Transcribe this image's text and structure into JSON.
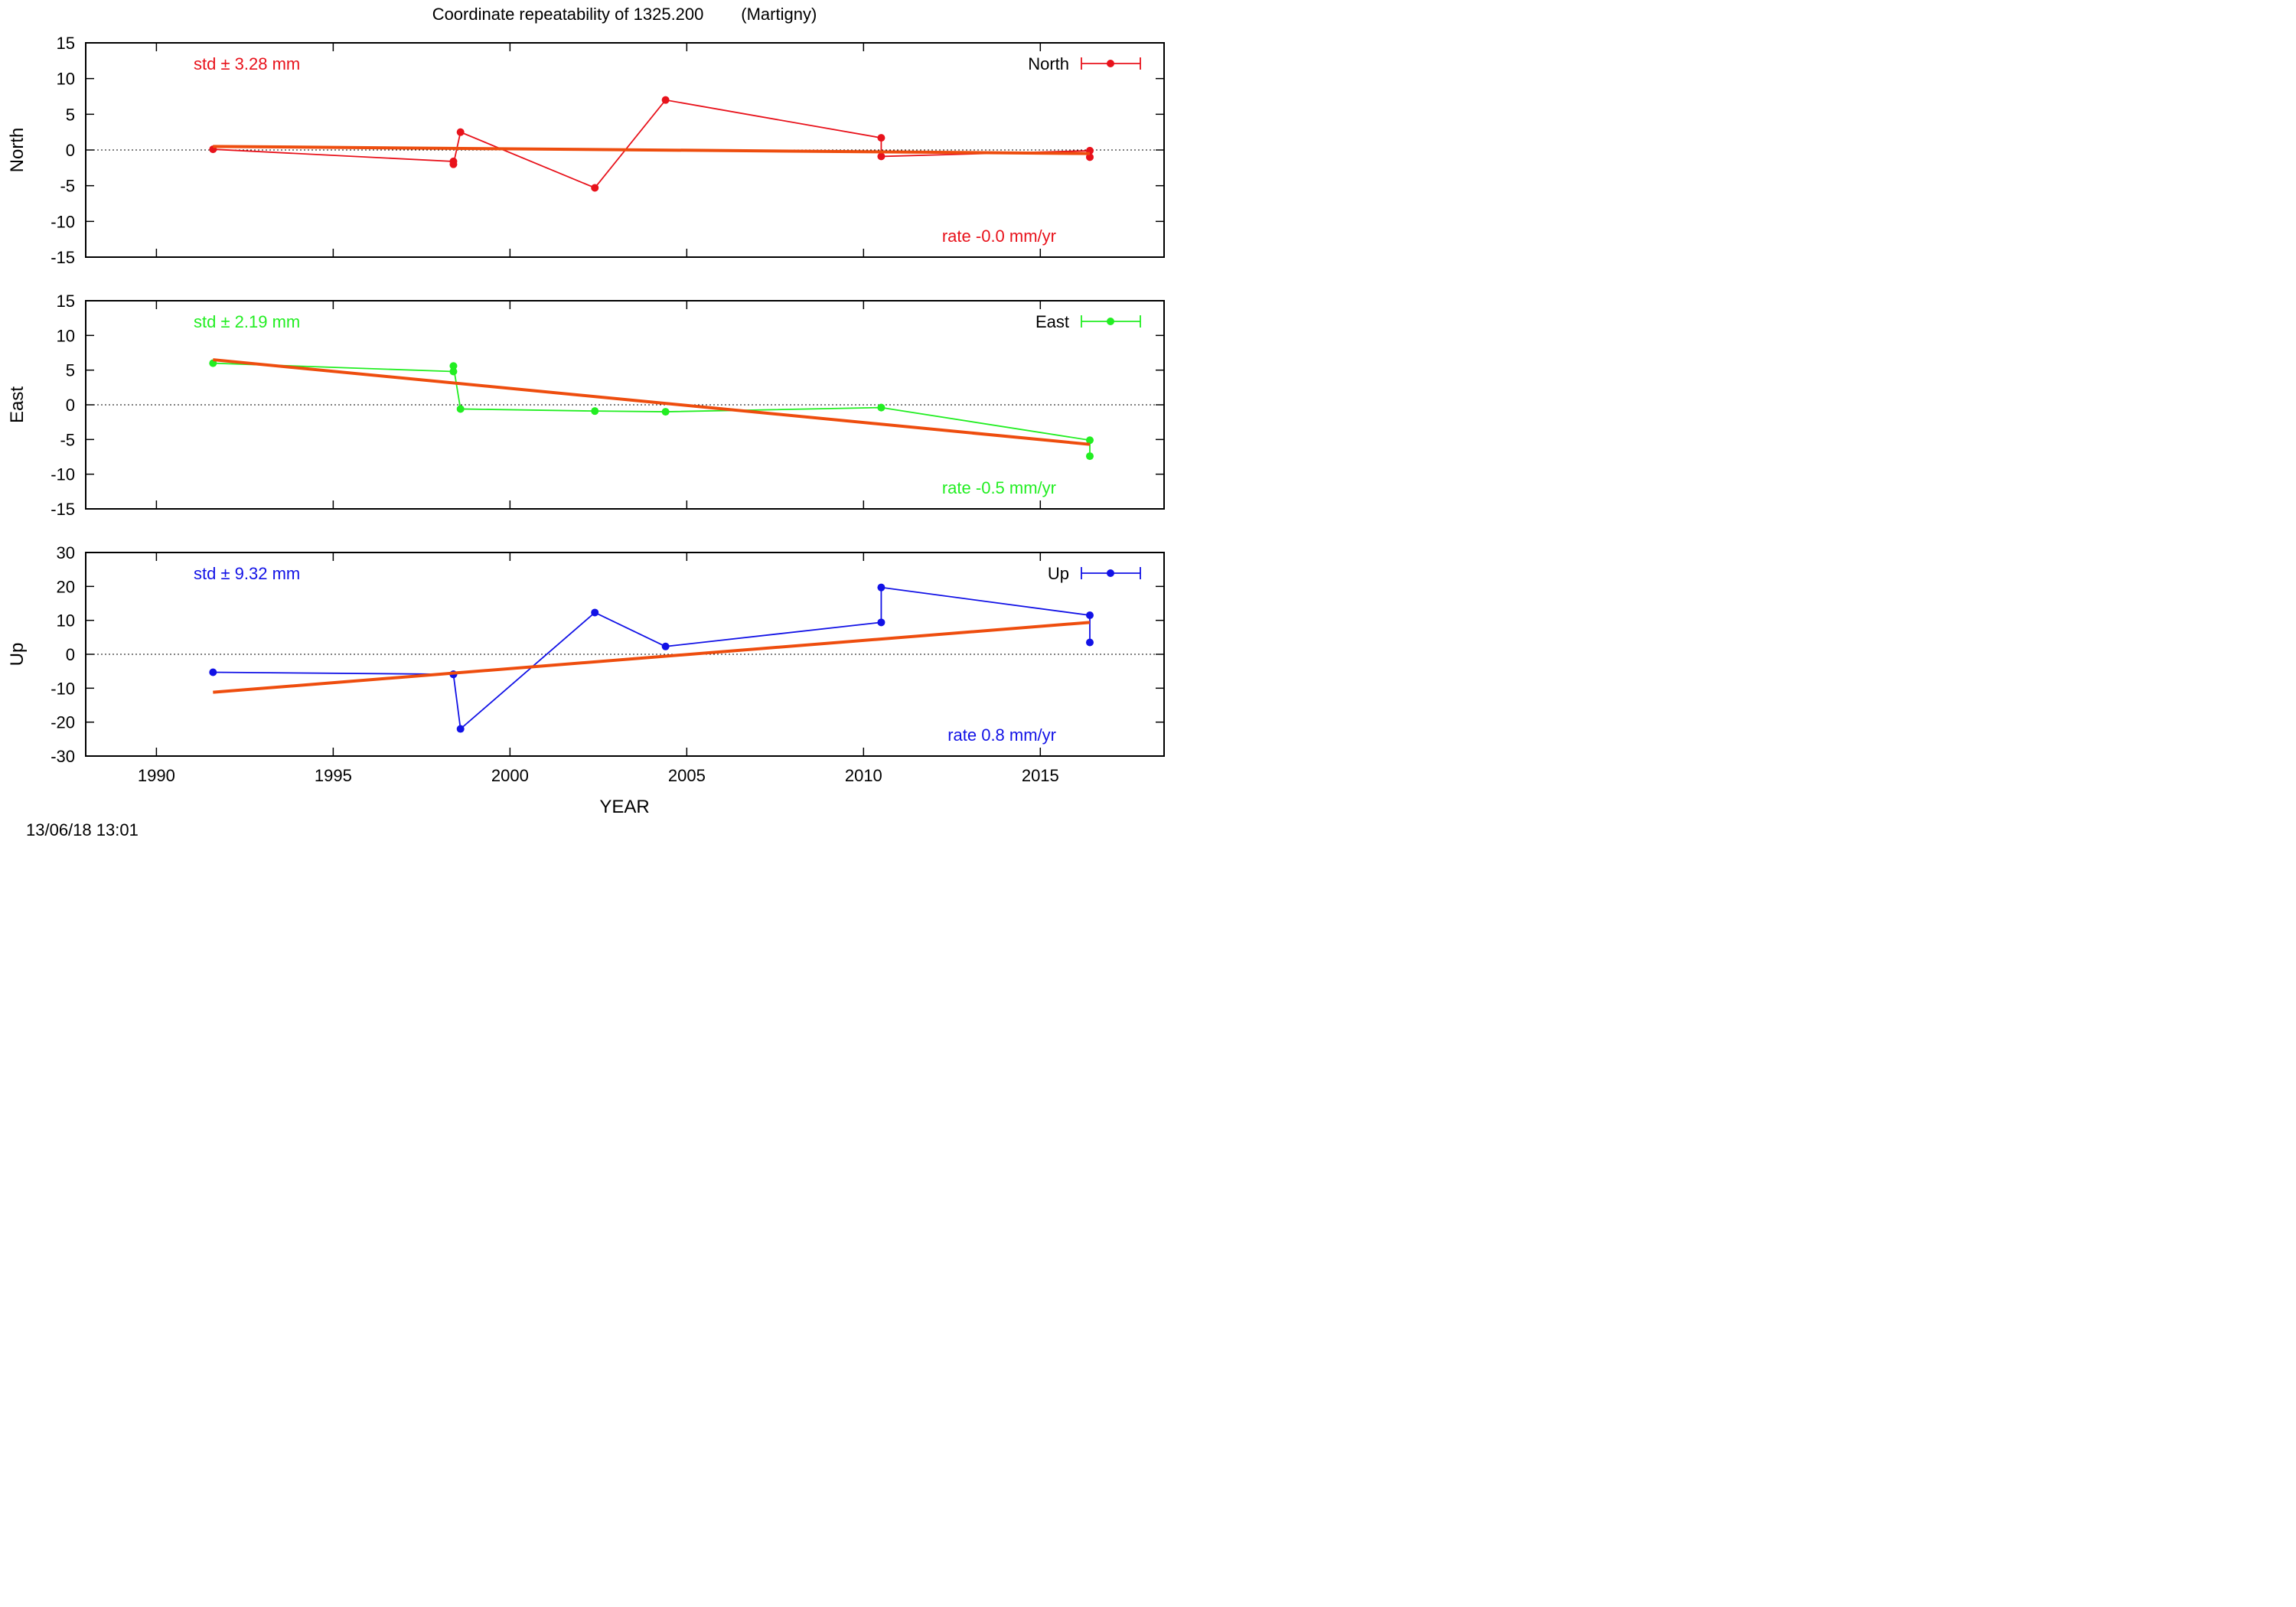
{
  "title": "Coordinate repeatability of 1325.200        (Martigny)",
  "timestamp": "13/06/18 13:01",
  "chart_data": [
    {
      "type": "line",
      "panel": "north",
      "ylabel": "North",
      "xlim": [
        1988,
        2018.5
      ],
      "ylim": [
        -15,
        15
      ],
      "y_ticks": [
        15,
        10,
        5,
        0,
        -5,
        -10,
        -15
      ],
      "zero_line": true,
      "legend": "North",
      "legend_position": "top-right",
      "color": "#e8121b",
      "std_label": "std ± 3.28 mm",
      "rate_label": "rate -0.0 mm/yr",
      "series": [
        {
          "name": "North",
          "x": [
            1991.6,
            1998.4,
            1998.4,
            1998.6,
            2002.4,
            2004.4,
            2010.5,
            2010.5,
            2016.4,
            2016.4
          ],
          "y": [
            0.1,
            -1.6,
            -2.0,
            2.5,
            -5.3,
            7.0,
            1.7,
            -0.9,
            -0.1,
            -1.0
          ]
        }
      ],
      "trend": {
        "x": [
          1991.6,
          2016.4
        ],
        "y": [
          0.5,
          -0.5
        ]
      }
    },
    {
      "type": "line",
      "panel": "east",
      "ylabel": "East",
      "xlim": [
        1988,
        2018.5
      ],
      "ylim": [
        -15,
        15
      ],
      "y_ticks": [
        15,
        10,
        5,
        0,
        -5,
        -10,
        -15
      ],
      "zero_line": true,
      "legend": "East",
      "legend_position": "top-right",
      "color": "#22ee22",
      "std_label": "std ± 2.19 mm",
      "rate_label": "rate -0.5 mm/yr",
      "series": [
        {
          "name": "East",
          "x": [
            1991.6,
            1998.4,
            1998.4,
            1998.6,
            2002.4,
            2004.4,
            2010.5,
            2010.5,
            2016.4,
            2016.4
          ],
          "y": [
            6.0,
            4.8,
            5.6,
            -0.6,
            -0.9,
            -1.0,
            -0.4,
            -0.4,
            -5.1,
            -7.4
          ]
        }
      ],
      "trend": {
        "x": [
          1991.6,
          2016.4
        ],
        "y": [
          6.5,
          -5.7
        ]
      }
    },
    {
      "type": "line",
      "panel": "up",
      "ylabel": "Up",
      "xlabel": "YEAR",
      "xlim": [
        1988,
        2018.5
      ],
      "ylim": [
        -30,
        30
      ],
      "y_ticks": [
        30,
        20,
        10,
        0,
        -10,
        -20,
        -30
      ],
      "x_ticks": [
        1990,
        1995,
        2000,
        2005,
        2010,
        2015
      ],
      "zero_line": true,
      "legend": "Up",
      "legend_position": "top-right",
      "color": "#1212e6",
      "std_label": "std ± 9.32 mm",
      "rate_label": "rate  0.8 mm/yr",
      "series": [
        {
          "name": "Up",
          "x": [
            1991.6,
            1998.4,
            1998.4,
            1998.6,
            2002.4,
            2004.4,
            2010.5,
            2010.5,
            2016.4,
            2016.4
          ],
          "y": [
            -5.3,
            -5.9,
            -5.9,
            -22.0,
            12.3,
            2.3,
            9.4,
            19.7,
            11.5,
            3.5
          ]
        }
      ],
      "trend": {
        "x": [
          1991.6,
          2016.4
        ],
        "y": [
          -11.2,
          9.4
        ]
      }
    }
  ],
  "colors": {
    "trend": "#ee4d0e",
    "frame": "#000000",
    "zero_line": "#000000"
  }
}
